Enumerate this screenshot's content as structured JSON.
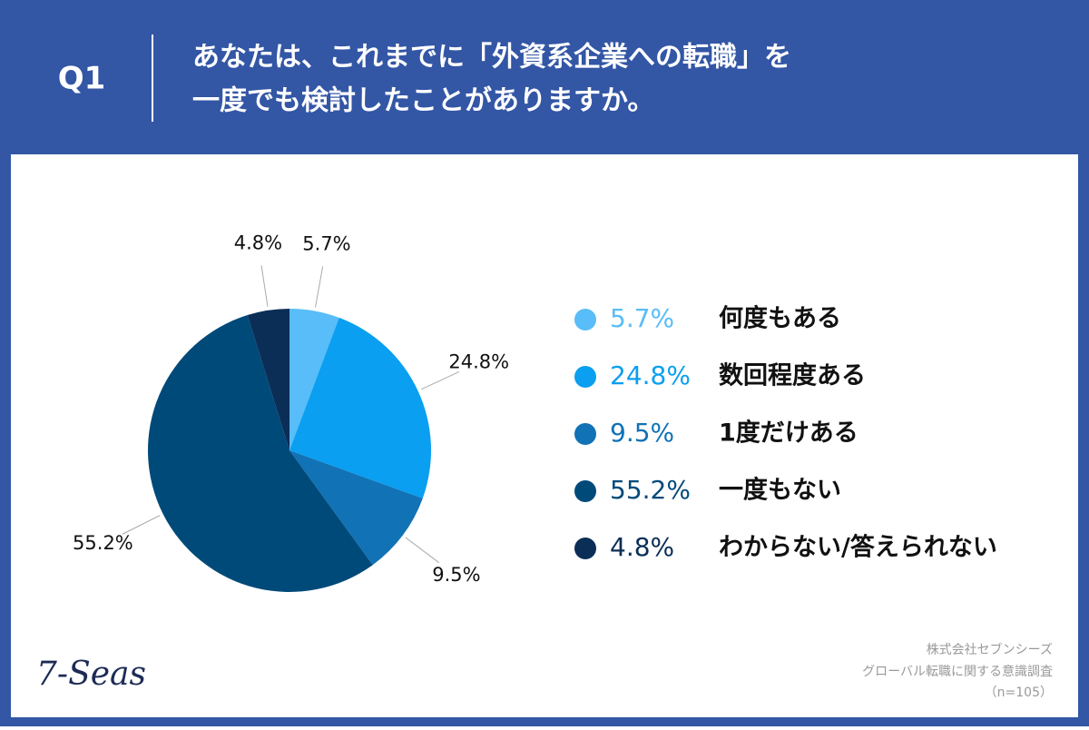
{
  "question_label": "Q1",
  "logo": "7-Seas",
  "source": [
    "株式会社セブンシーズ",
    "グローバル転職に関する意識調査",
    "（n=105）"
  ],
  "chart_data": {
    "type": "pie",
    "title": [
      "あなたは、これまでに「外資系企業への転職」を",
      "一度でも検討したことがありますか。"
    ],
    "categories": [
      "何度もある",
      "数回程度ある",
      "1度だけある",
      "一度もない",
      "わからない/答えられない"
    ],
    "values": [
      5.7,
      24.8,
      9.5,
      55.2,
      4.8
    ],
    "value_labels": [
      "5.7%",
      "24.8%",
      "9.5%",
      "55.2%",
      "4.8%"
    ],
    "colors": [
      "#58bdf8",
      "#0a9ff0",
      "#1172b6",
      "#004a7a",
      "#0b2e57"
    ],
    "legend": "right"
  }
}
